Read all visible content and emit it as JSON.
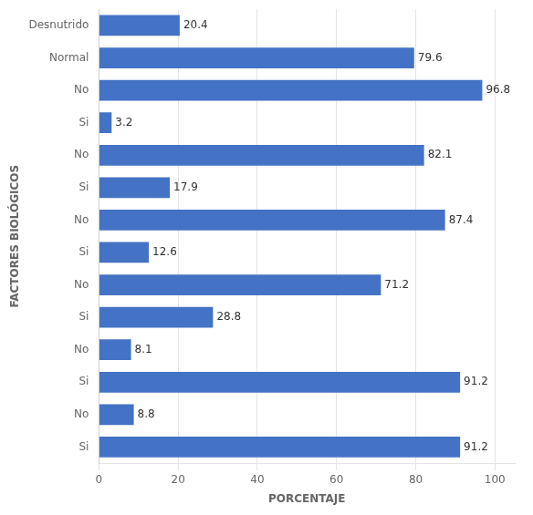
{
  "chart_data": {
    "type": "bar",
    "orientation": "horizontal",
    "xlabel": "PORCENTAJE",
    "ylabel": "FACTORES BIOLÓGICOS",
    "categories": [
      "Si",
      "No",
      "Si",
      "No",
      "Si",
      "No",
      "Si",
      "No",
      "Si",
      "No",
      "Si",
      "No",
      "Normal",
      "Desnutrido"
    ],
    "values": [
      91.2,
      8.8,
      91.2,
      8.1,
      28.8,
      71.2,
      12.6,
      87.4,
      17.9,
      82.1,
      3.2,
      96.8,
      79.6,
      20.4
    ],
    "color": "#4472C4",
    "xlim": [
      0,
      105
    ],
    "xticks": [
      0,
      20,
      40,
      60,
      80,
      100
    ],
    "grid": "x",
    "data_labels": true
  }
}
